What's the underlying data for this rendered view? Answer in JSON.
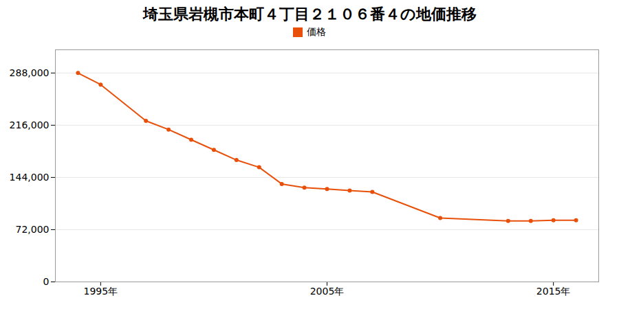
{
  "chart_data": {
    "type": "line",
    "title": "埼玉県岩槻市本町４丁目２１０６番４の地価推移",
    "x": [
      1994,
      1995,
      1997,
      1998,
      1999,
      2000,
      2001,
      2002,
      2003,
      2004,
      2005,
      2006,
      2007,
      2010,
      2013,
      2014,
      2015,
      2016
    ],
    "series": [
      {
        "name": "価格",
        "color": "#e8500a",
        "marker": "circle",
        "values": [
          288000,
          272000,
          222000,
          210000,
          196000,
          182000,
          168000,
          158000,
          135000,
          130000,
          128000,
          126000,
          124000,
          88000,
          84000,
          84000,
          85000,
          85000
        ]
      }
    ],
    "xlim": [
      1993,
      2017
    ],
    "xticks": [
      {
        "value": 1995,
        "label": "1995年"
      },
      {
        "value": 2005,
        "label": "2005年"
      },
      {
        "value": 2015,
        "label": "2015年"
      }
    ],
    "ylim": [
      0,
      320000
    ],
    "yticks": [
      0,
      {
        "value": 72000,
        "label": "72,000"
      },
      {
        "value": 144000,
        "label": "144,000"
      },
      {
        "value": 216000,
        "label": "216,000"
      },
      {
        "value": 288000,
        "label": "288,000"
      }
    ],
    "grid": "y",
    "legend": "top"
  }
}
